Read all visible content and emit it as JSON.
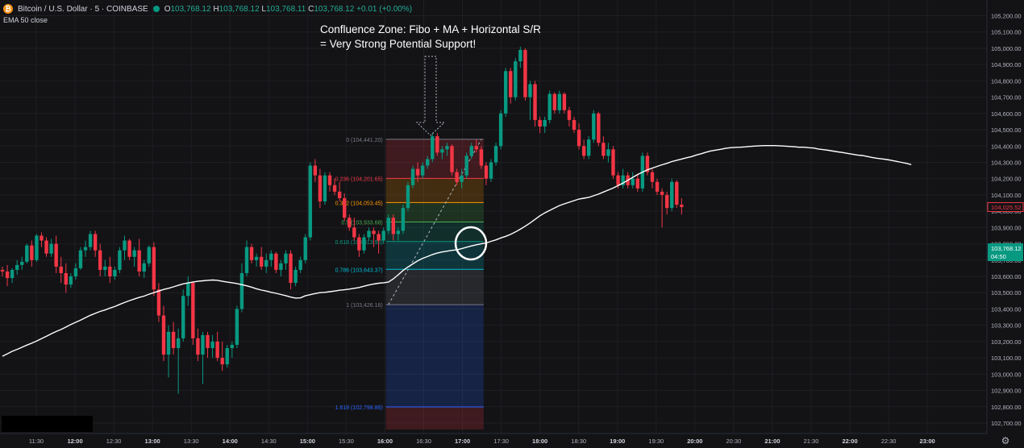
{
  "header": {
    "symbol": "Bitcoin / U.S. Dollar · 5 · COINBASE",
    "icon": "bitcoin-icon",
    "market_status": "market-open-dot",
    "ohlc": {
      "o_label": "O",
      "o": "103,768.12",
      "h_label": "H",
      "h": "103,768.12",
      "l_label": "L",
      "l": "103,768.11",
      "c_label": "C",
      "c": "103,768.12",
      "change": "+0.01 (+0.00%)"
    },
    "indicator": "EMA 50 close"
  },
  "annotation": {
    "line1": "Confluence Zone: Fibo + MA + Horizontal S/R",
    "line2": "= Very Strong Potential Support!"
  },
  "colors": {
    "background": "#131316",
    "up": "#089981",
    "down": "#f23645",
    "ema": "#ffffff",
    "grid": "#1f1f23"
  },
  "chart_data": {
    "type": "candlestick",
    "y_axis": {
      "range": [
        102650,
        105150
      ],
      "ticks": [
        102700,
        102800,
        102900,
        103000,
        103100,
        103200,
        103300,
        103400,
        103500,
        103600,
        103700,
        103800,
        103900,
        104000,
        104100,
        104200,
        104300,
        104400,
        104500,
        104600,
        104700,
        104800,
        104900,
        105000,
        105100,
        105200
      ],
      "tick_labels": [
        "102,700.00",
        "102,800.00",
        "102,900.00",
        "103,000.00",
        "103,100.00",
        "103,200.00",
        "103,300.00",
        "103,400.00",
        "103,500.00",
        "103,600.00",
        "103,700.00",
        "103,800.00",
        "103,900.00",
        "104,000.00",
        "104,100.00",
        "104,200.00",
        "104,300.00",
        "104,400.00",
        "104,500.00",
        "104,600.00",
        "104,700.00",
        "104,800.00",
        "104,900.00",
        "105,000.00",
        "105,100.00",
        "105,200.00"
      ]
    },
    "x_axis": {
      "labels": [
        "11:30",
        "12:00",
        "12:30",
        "13:00",
        "13:30",
        "14:00",
        "14:30",
        "15:00",
        "15:30",
        "16:00",
        "16:30",
        "17:00",
        "17:30",
        "18:00",
        "18:30",
        "19:00",
        "19:30",
        "20:00",
        "20:30",
        "21:00",
        "21:30",
        "22:00",
        "22:30",
        "23:00"
      ],
      "bold": [
        "12:00",
        "13:00",
        "14:00",
        "15:00",
        "16:00",
        "17:00",
        "18:00",
        "19:00",
        "20:00",
        "21:00",
        "22:00",
        "23:00"
      ]
    },
    "price_tags": [
      {
        "value": 104025.52,
        "label": "104,025.52",
        "style": "outline",
        "color": "#f23645"
      },
      {
        "value": 103768.12,
        "label": "103,768.12",
        "sub": "04:50",
        "style": "filled",
        "color": "#089981"
      }
    ],
    "fibonacci": {
      "levels": [
        {
          "ratio": "0",
          "price": 104441.2,
          "label": "0 (104,441.20)",
          "color": "#787b86"
        },
        {
          "ratio": "0.236",
          "price": 104201.65,
          "label": "0.236 (104,201.65)",
          "color": "#f23645"
        },
        {
          "ratio": "0.382",
          "price": 104053.45,
          "label": "0.382 (104,053.45)",
          "color": "#ff9800"
        },
        {
          "ratio": "0.5",
          "price": 103933.68,
          "label": "0.5 (103,933.68)",
          "color": "#4caf50"
        },
        {
          "ratio": "0.618",
          "price": 103813.9,
          "label": "0.618 (103,813.90)",
          "color": "#089981"
        },
        {
          "ratio": "0.786",
          "price": 103643.37,
          "label": "0.786 (103,643.37)",
          "color": "#00bcd4"
        },
        {
          "ratio": "1",
          "price": 103426.16,
          "label": "1 (103,426.16)",
          "color": "#787b86"
        },
        {
          "ratio": "1.618",
          "price": 102798.86,
          "label": "1.618 (102,798.86)",
          "color": "#2962ff"
        }
      ],
      "zones": [
        {
          "from": 104441.2,
          "to": 104201.65,
          "color": "#f23645"
        },
        {
          "from": 104201.65,
          "to": 104053.45,
          "color": "#ff9800"
        },
        {
          "from": 104053.45,
          "to": 103933.68,
          "color": "#4caf50"
        },
        {
          "from": 103933.68,
          "to": 103813.9,
          "color": "#089981"
        },
        {
          "from": 103813.9,
          "to": 103643.37,
          "color": "#00bcd4"
        },
        {
          "from": 103643.37,
          "to": 103426.16,
          "color": "#787b86"
        },
        {
          "from": 103426.16,
          "to": 102798.86,
          "color": "#2962ff"
        },
        {
          "from": 102798.86,
          "to": 102660.0,
          "color": "#f23645"
        }
      ],
      "start_bar": 79,
      "end_bar": 98,
      "trend_from_bar": 79,
      "trend_to_bar": 98
    },
    "ema_label": "EMA 50 close",
    "ema_values": [
      103110,
      103125,
      103140,
      103152,
      103165,
      103178,
      103190,
      103203,
      103218,
      103232,
      103248,
      103262,
      103274,
      103289,
      103305,
      103318,
      103332,
      103347,
      103361,
      103373,
      103385,
      103394,
      103405,
      103415,
      103428,
      103440,
      103451,
      103461,
      103471,
      103479,
      103491,
      103500,
      103510,
      103520,
      103527,
      103536,
      103545,
      103554,
      103560,
      103565,
      103570,
      103573,
      103576,
      103578,
      103576,
      103570,
      103565,
      103561,
      103556,
      103549,
      103542,
      103534,
      103524,
      103516,
      103510,
      103502,
      103496,
      103489,
      103482,
      103473,
      103467,
      103468,
      103481,
      103488,
      103495,
      103500,
      103502,
      103506,
      103510,
      103515,
      103518,
      103522,
      103527,
      103532,
      103540,
      103547,
      103553,
      103558,
      103561,
      103565,
      103585,
      103610,
      103636,
      103658,
      103677,
      103696,
      103711,
      103722,
      103734,
      103743,
      103750,
      103755,
      103760,
      103763,
      103770,
      103779,
      103787,
      103794,
      103800,
      103805,
      103815,
      103824,
      103836,
      103846,
      103858,
      103873,
      103890,
      103908,
      103928,
      103950,
      103972,
      103990,
      104005,
      104020,
      104035,
      104045,
      104055,
      104065,
      104075,
      104080,
      104085,
      104095,
      104105,
      104118,
      104130,
      104142,
      104158,
      104173,
      104190,
      104208,
      104225,
      104240,
      104254,
      104265,
      104275,
      104285,
      104294,
      104305,
      104313,
      104320,
      104328,
      104335,
      104345,
      104353,
      104362,
      104370,
      104375,
      104380,
      104386,
      104390,
      104392,
      104393,
      104395,
      104398,
      104400,
      104402,
      104403,
      104403,
      104403,
      104402,
      104400,
      104398,
      104396,
      104393,
      104393,
      104390,
      104388,
      104382,
      104378,
      104374,
      104369,
      104364,
      104360,
      104355,
      104350,
      104345,
      104342,
      104336,
      104330,
      104325,
      104321,
      104317,
      104312,
      104306,
      104300,
      104294,
      104286
    ],
    "candles": [
      [
        103640,
        103660,
        103600,
        103630
      ],
      [
        103630,
        103670,
        103540,
        103590
      ],
      [
        103590,
        103650,
        103560,
        103640
      ],
      [
        103640,
        103700,
        103610,
        103670
      ],
      [
        103670,
        103720,
        103640,
        103690
      ],
      [
        103690,
        103800,
        103680,
        103790
      ],
      [
        103790,
        103820,
        103660,
        103700
      ],
      [
        103700,
        103860,
        103690,
        103850
      ],
      [
        103850,
        103870,
        103780,
        103820
      ],
      [
        103820,
        103840,
        103720,
        103740
      ],
      [
        103740,
        103830,
        103720,
        103800
      ],
      [
        103800,
        103850,
        103620,
        103660
      ],
      [
        103660,
        103720,
        103560,
        103620
      ],
      [
        103620,
        103680,
        103500,
        103550
      ],
      [
        103550,
        103620,
        103530,
        103600
      ],
      [
        103600,
        103680,
        103580,
        103650
      ],
      [
        103650,
        103780,
        103640,
        103760
      ],
      [
        103760,
        103820,
        103720,
        103780
      ],
      [
        103780,
        103880,
        103760,
        103860
      ],
      [
        103860,
        103880,
        103720,
        103760
      ],
      [
        103760,
        103800,
        103600,
        103640
      ],
      [
        103640,
        103700,
        103600,
        103660
      ],
      [
        103660,
        103720,
        103560,
        103600
      ],
      [
        103600,
        103660,
        103580,
        103640
      ],
      [
        103640,
        103780,
        103620,
        103760
      ],
      [
        103760,
        103850,
        103700,
        103820
      ],
      [
        103820,
        103830,
        103700,
        103720
      ],
      [
        103720,
        103780,
        103660,
        103760
      ],
      [
        103760,
        103830,
        103600,
        103630
      ],
      [
        103630,
        103700,
        103590,
        103680
      ],
      [
        103680,
        103790,
        103660,
        103780
      ],
      [
        103780,
        103810,
        103480,
        103520
      ],
      [
        103520,
        103560,
        103320,
        103360
      ],
      [
        103360,
        103420,
        103080,
        103120
      ],
      [
        103120,
        103300,
        102980,
        103260
      ],
      [
        103260,
        103320,
        103120,
        103160
      ],
      [
        103160,
        103280,
        102880,
        103220
      ],
      [
        103220,
        103520,
        103200,
        103480
      ],
      [
        103480,
        103600,
        103420,
        103560
      ],
      [
        103560,
        103570,
        103180,
        103220
      ],
      [
        103220,
        103280,
        103080,
        103120
      ],
      [
        103120,
        103260,
        102940,
        103240
      ],
      [
        103240,
        103260,
        103100,
        103160
      ],
      [
        103160,
        103240,
        103100,
        103200
      ],
      [
        103200,
        103260,
        103080,
        103100
      ],
      [
        103100,
        103200,
        103020,
        103060
      ],
      [
        103060,
        103180,
        103040,
        103160
      ],
      [
        103160,
        103200,
        103100,
        103180
      ],
      [
        103180,
        103420,
        103160,
        103400
      ],
      [
        103400,
        103680,
        103380,
        103620
      ],
      [
        103620,
        103820,
        103600,
        103780
      ],
      [
        103780,
        103800,
        103680,
        103700
      ],
      [
        103700,
        103740,
        103660,
        103720
      ],
      [
        103720,
        103780,
        103640,
        103660
      ],
      [
        103660,
        103740,
        103620,
        103700
      ],
      [
        103700,
        103760,
        103660,
        103740
      ],
      [
        103740,
        103750,
        103620,
        103640
      ],
      [
        103640,
        103700,
        103600,
        103680
      ],
      [
        103680,
        103760,
        103640,
        103740
      ],
      [
        103740,
        103760,
        103520,
        103560
      ],
      [
        103560,
        103660,
        103540,
        103640
      ],
      [
        103640,
        103720,
        103620,
        103700
      ],
      [
        103700,
        103860,
        103680,
        103840
      ],
      [
        103840,
        104300,
        103820,
        104280
      ],
      [
        104280,
        104320,
        104180,
        104220
      ],
      [
        104220,
        104260,
        104020,
        104060
      ],
      [
        104060,
        104240,
        104040,
        104220
      ],
      [
        104220,
        104240,
        104120,
        104160
      ],
      [
        104160,
        104200,
        104100,
        104120
      ],
      [
        104120,
        104180,
        104060,
        104080
      ],
      [
        104080,
        104110,
        103940,
        103960
      ],
      [
        103960,
        103980,
        103880,
        103900
      ],
      [
        103900,
        103960,
        103820,
        103840
      ],
      [
        103840,
        103860,
        103720,
        103760
      ],
      [
        103760,
        103860,
        103740,
        103840
      ],
      [
        103840,
        103900,
        103820,
        103880
      ],
      [
        103880,
        103900,
        103780,
        103860
      ],
      [
        103860,
        103880,
        103740,
        103820
      ],
      [
        103820,
        103900,
        103800,
        103880
      ],
      [
        103880,
        103980,
        103860,
        103960
      ],
      [
        103960,
        103980,
        103820,
        103860
      ],
      [
        103860,
        103900,
        103820,
        103880
      ],
      [
        103880,
        104040,
        103860,
        104020
      ],
      [
        104020,
        104180,
        104000,
        104160
      ],
      [
        104160,
        104280,
        104140,
        104260
      ],
      [
        104260,
        104300,
        104180,
        104220
      ],
      [
        104220,
        104300,
        104200,
        104280
      ],
      [
        104280,
        104340,
        104260,
        104320
      ],
      [
        104320,
        104480,
        104300,
        104460
      ],
      [
        104460,
        104480,
        104340,
        104360
      ],
      [
        104360,
        104400,
        104320,
        104380
      ],
      [
        104380,
        104420,
        104340,
        104400
      ],
      [
        104400,
        104410,
        104220,
        104240
      ],
      [
        104240,
        104260,
        104160,
        104180
      ],
      [
        104180,
        104260,
        104140,
        104220
      ],
      [
        104220,
        104360,
        104200,
        104340
      ],
      [
        104340,
        104420,
        104320,
        104400
      ],
      [
        104400,
        104440,
        104360,
        104380
      ],
      [
        104380,
        104400,
        104260,
        104280
      ],
      [
        104280,
        104300,
        104160,
        104200
      ],
      [
        104200,
        104320,
        104180,
        104300
      ],
      [
        104300,
        104420,
        104280,
        104400
      ],
      [
        104400,
        104620,
        104380,
        104600
      ],
      [
        104600,
        104880,
        104580,
        104860
      ],
      [
        104860,
        104880,
        104660,
        104700
      ],
      [
        104700,
        104940,
        104680,
        104920
      ],
      [
        104920,
        105010,
        104880,
        104990
      ],
      [
        104990,
        105000,
        104680,
        104700
      ],
      [
        104700,
        104800,
        104560,
        104780
      ],
      [
        104780,
        104800,
        104520,
        104560
      ],
      [
        104560,
        104580,
        104480,
        104520
      ],
      [
        104520,
        104580,
        104480,
        104560
      ],
      [
        104560,
        104740,
        104540,
        104720
      ],
      [
        104720,
        104730,
        104600,
        104620
      ],
      [
        104620,
        104740,
        104600,
        104720
      ],
      [
        104720,
        104730,
        104600,
        104620
      ],
      [
        104620,
        104640,
        104520,
        104560
      ],
      [
        104560,
        104580,
        104480,
        104500
      ],
      [
        104500,
        104540,
        104380,
        104400
      ],
      [
        104400,
        104440,
        104320,
        104340
      ],
      [
        104340,
        104460,
        104320,
        104440
      ],
      [
        104440,
        104620,
        104420,
        104600
      ],
      [
        104600,
        104610,
        104400,
        104420
      ],
      [
        104420,
        104460,
        104320,
        104340
      ],
      [
        104340,
        104420,
        104300,
        104380
      ],
      [
        104380,
        104400,
        104200,
        104220
      ],
      [
        104220,
        104240,
        104140,
        104160
      ],
      [
        104160,
        104260,
        104140,
        104220
      ],
      [
        104220,
        104240,
        104140,
        104160
      ],
      [
        104160,
        104240,
        104140,
        104200
      ],
      [
        104200,
        104230,
        104120,
        104140
      ],
      [
        104140,
        104360,
        104120,
        104340
      ],
      [
        104340,
        104360,
        104220,
        104240
      ],
      [
        104240,
        104260,
        104140,
        104180
      ],
      [
        104180,
        104200,
        104100,
        104120
      ],
      [
        104120,
        104140,
        103900,
        104100
      ],
      [
        104100,
        104120,
        103980,
        104020
      ],
      [
        104020,
        104200,
        104000,
        104180
      ],
      [
        104180,
        104190,
        104020,
        104040
      ],
      [
        104040,
        104080,
        103980,
        104025.52
      ]
    ]
  }
}
